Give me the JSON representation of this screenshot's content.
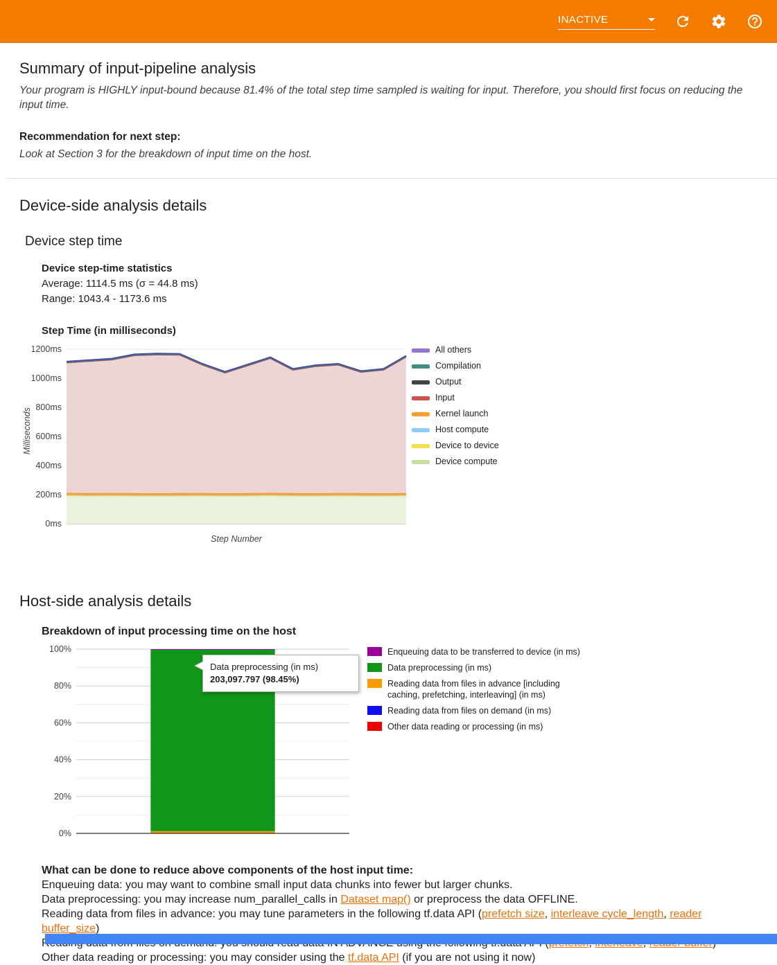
{
  "header": {
    "selector_label": "INACTIVE",
    "accent_color": "#f57c00"
  },
  "summary": {
    "title": "Summary of input-pipeline analysis",
    "body": "Your program is HIGHLY input-bound because 81.4% of the total step time sampled is waiting for input. Therefore, you should first focus on reducing the input time.",
    "recommendation_heading": "Recommendation for next step:",
    "recommendation_body": "Look at Section 3 for the breakdown of input time on the host."
  },
  "device_section": {
    "title": "Device-side analysis details",
    "subtitle": "Device step time",
    "stats_heading": "Device step-time statistics",
    "stats_average": "Average: 1114.5 ms (σ = 44.8 ms)",
    "stats_range": "Range: 1043.4 - 1173.6 ms",
    "chart_heading": "Step Time (in milliseconds)"
  },
  "host_section": {
    "title": "Host-side analysis details",
    "chart_heading": "Breakdown of input processing time on the host",
    "tooltip": {
      "line1": "Data preprocessing (in ms)",
      "line2": "203,097.797 (98.45%)"
    }
  },
  "advice": {
    "heading": "What can be done to reduce above components of the host input time:",
    "lines": [
      {
        "segments": [
          {
            "t": "Enqueuing data: you may want to combine small input data chunks into fewer but larger chunks."
          }
        ]
      },
      {
        "segments": [
          {
            "t": "Data preprocessing: you may increase num_parallel_calls in "
          },
          {
            "t": "Dataset map()",
            "link": true
          },
          {
            "t": " or preprocess the data OFFLINE."
          }
        ]
      },
      {
        "segments": [
          {
            "t": "Reading data from files in advance: you may tune parameters in the following tf.data API ("
          },
          {
            "t": "prefetch size",
            "link": true
          },
          {
            "t": ", "
          },
          {
            "t": "interleave cycle_length",
            "link": true
          },
          {
            "t": ", "
          },
          {
            "t": "reader buffer_size",
            "link": true
          },
          {
            "t": ")"
          }
        ]
      },
      {
        "segments": [
          {
            "t": "Reading data from files on demand: you should read data IN ADVANCE using the following tf.data API ("
          },
          {
            "t": "prefetch",
            "link": true
          },
          {
            "t": ", "
          },
          {
            "t": "interleave",
            "link": true
          },
          {
            "t": ", "
          },
          {
            "t": "reader buffer",
            "link": true
          },
          {
            "t": ")"
          }
        ]
      },
      {
        "segments": [
          {
            "t": "Other data reading or processing: you may consider using the "
          },
          {
            "t": "tf.data API",
            "link": true
          },
          {
            "t": " (if you are not using it now)"
          }
        ]
      }
    ]
  },
  "chart_data": [
    {
      "type": "area",
      "title": "Step Time (in milliseconds)",
      "xlabel": "Step Number",
      "ylabel": "Milliseconds",
      "ylim": [
        0,
        1200
      ],
      "ytick_labels": [
        "0ms",
        "200ms",
        "400ms",
        "600ms",
        "800ms",
        "1000ms",
        "1200ms"
      ],
      "x": [
        1,
        2,
        3,
        4,
        5,
        6,
        7,
        8,
        9,
        10,
        11,
        12,
        13,
        14,
        15,
        16
      ],
      "grid": true,
      "legend_position": "right",
      "total_line_color": "#474d9d",
      "series": [
        {
          "name": "Device compute",
          "color": "#c9de9f",
          "fill": "#eaf2dc",
          "values": [
            192,
            190,
            191,
            190,
            189,
            190,
            191,
            189,
            190,
            192,
            190,
            189,
            191,
            190,
            189,
            191
          ]
        },
        {
          "name": "Device to device",
          "color": "#f3e04f",
          "fill": "#f3e04f",
          "values": [
            4,
            4,
            4,
            4,
            4,
            4,
            4,
            4,
            4,
            4,
            4,
            4,
            4,
            4,
            4,
            4
          ]
        },
        {
          "name": "Host compute",
          "color": "#8ecdf8",
          "fill": "#8ecdf8",
          "values": [
            2,
            2,
            2,
            2,
            2,
            2,
            2,
            2,
            2,
            2,
            2,
            2,
            2,
            2,
            2,
            2
          ]
        },
        {
          "name": "Kernel launch",
          "color": "#f28b1d",
          "fill": "#ffa033",
          "values": [
            14,
            14,
            14,
            14,
            14,
            14,
            14,
            14,
            14,
            14,
            14,
            14,
            14,
            14,
            14,
            14
          ]
        },
        {
          "name": "Input",
          "color": "#c9504a",
          "fill": "#edd4d5",
          "values": [
            893,
            905,
            914,
            945,
            951,
            948,
            879,
            826,
            875,
            923,
            845,
            871,
            879,
            830,
            846,
            934
          ]
        },
        {
          "name": "Output",
          "color": "#555555",
          "fill": "#6b6b6b",
          "values": [
            3,
            3,
            3,
            3,
            3,
            3,
            3,
            3,
            3,
            3,
            3,
            3,
            3,
            3,
            3,
            3
          ]
        },
        {
          "name": "Compilation",
          "color": "#3c8f82",
          "fill": "#74b3a4",
          "values": [
            2,
            2,
            2,
            2,
            2,
            2,
            2,
            2,
            2,
            2,
            2,
            2,
            2,
            2,
            2,
            2
          ]
        },
        {
          "name": "All others",
          "color": "#9b8fd4",
          "fill": "#a89ddd",
          "values": [
            5,
            5,
            5,
            5,
            5,
            5,
            5,
            5,
            5,
            5,
            5,
            5,
            5,
            5,
            5,
            5
          ]
        }
      ],
      "legend": [
        {
          "label": "All others",
          "color": "#9575cd"
        },
        {
          "label": "Compilation",
          "color": "#3c8f82"
        },
        {
          "label": "Output",
          "color": "#424242"
        },
        {
          "label": "Input",
          "color": "#d0524c"
        },
        {
          "label": "Kernel launch",
          "color": "#ff9d2e"
        },
        {
          "label": "Host compute",
          "color": "#8ecdf8"
        },
        {
          "label": "Device to device",
          "color": "#f3e04f"
        },
        {
          "label": "Device compute",
          "color": "#c8df9f"
        }
      ]
    },
    {
      "type": "bar",
      "stacked": true,
      "title": "Breakdown of input processing time on the host",
      "ylim": [
        0,
        100
      ],
      "ytick_labels": [
        "0%",
        "20%",
        "40%",
        "60%",
        "80%",
        "100%"
      ],
      "categories": [
        ""
      ],
      "series": [
        {
          "name": "Other data reading or processing (in ms)",
          "color": "#ee0000",
          "values": [
            0
          ]
        },
        {
          "name": "Reading data from files on demand (in ms)",
          "color": "#0e0ef0",
          "values": [
            0
          ]
        },
        {
          "name": "Reading data from files in advance [including caching, prefetching, interleaving] (in ms)",
          "color": "#ff9900",
          "values": [
            1.2
          ]
        },
        {
          "name": "Data preprocessing (in ms)",
          "color": "#109618",
          "values": [
            98.45
          ]
        },
        {
          "name": "Enqueuing data to be transferred to device (in ms)",
          "color": "#990099",
          "values": [
            0.35
          ]
        }
      ],
      "annotation": {
        "series": "Data preprocessing (in ms)",
        "value_ms": "203,097.797",
        "percent": "98.45%"
      },
      "legend": [
        {
          "label": "Enqueuing data to be transferred to device (in ms)",
          "color": "#990099"
        },
        {
          "label": "Data preprocessing (in ms)",
          "color": "#109618"
        },
        {
          "label": "Reading data from files in advance [including caching, prefetching, interleaving] (in ms)",
          "color": "#ff9900"
        },
        {
          "label": "Reading data from files on demand (in ms)",
          "color": "#0e0ef0"
        },
        {
          "label": "Other data reading or processing (in ms)",
          "color": "#ee0000"
        }
      ]
    }
  ]
}
